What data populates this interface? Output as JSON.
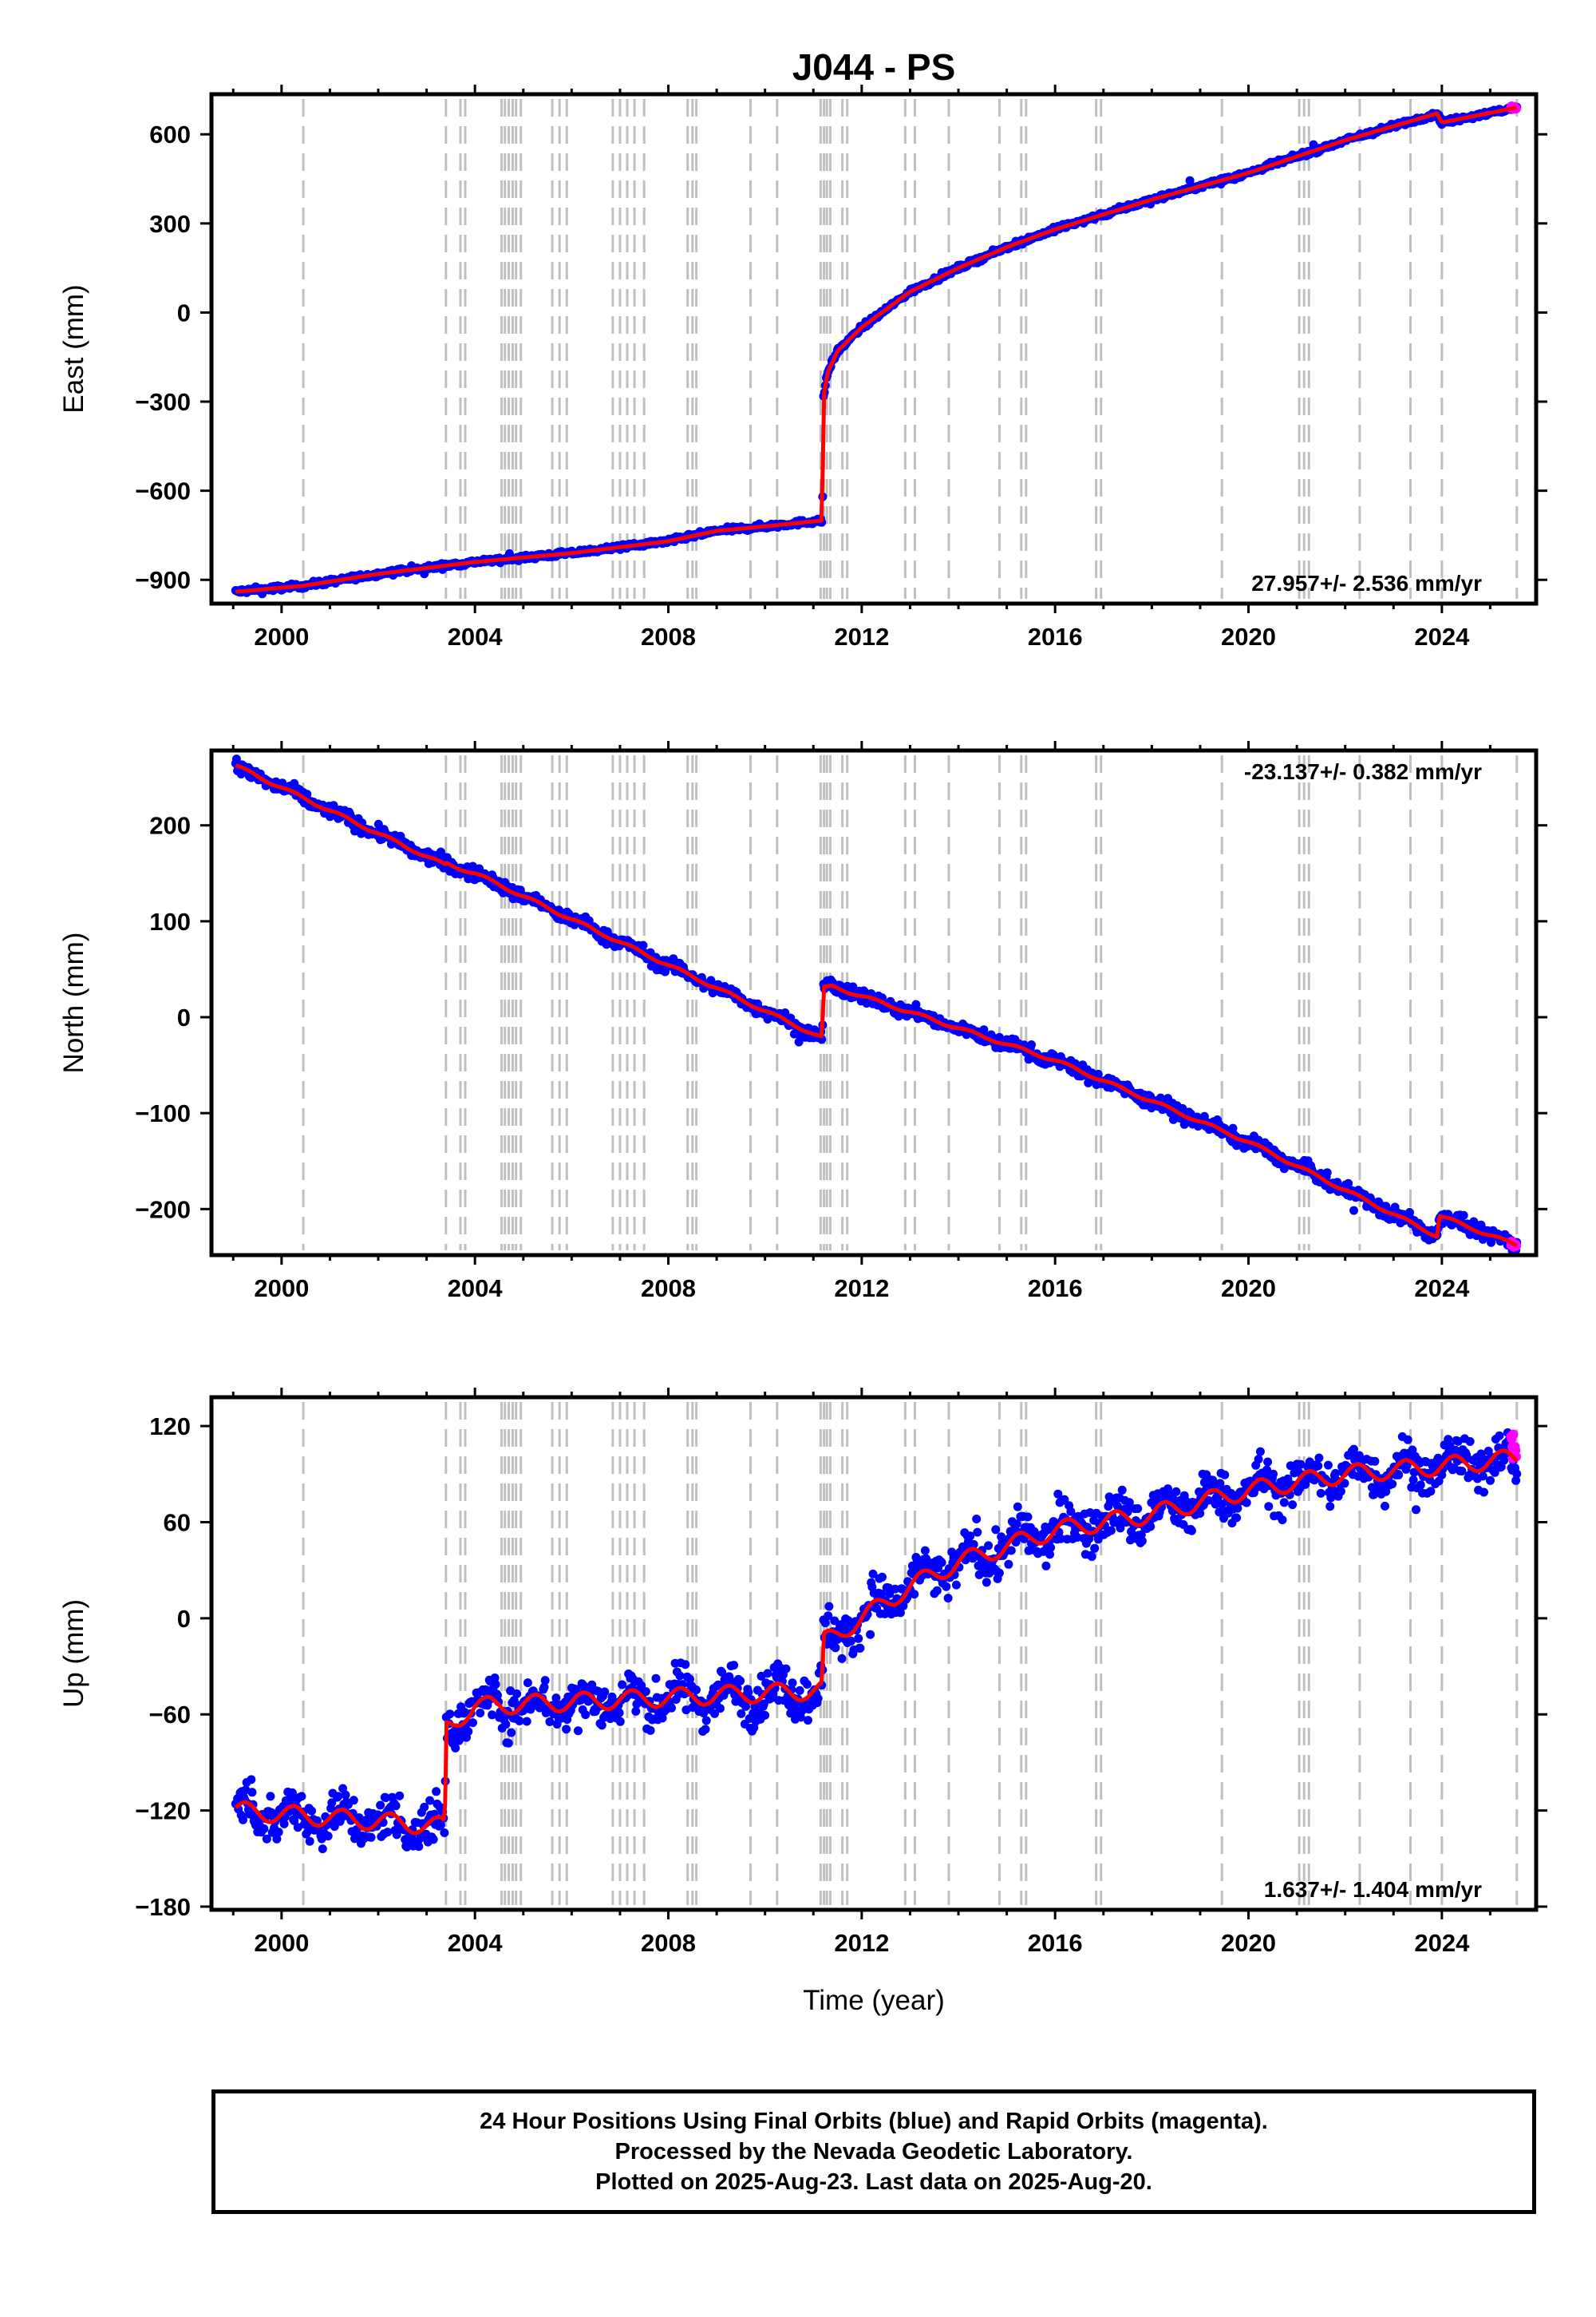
{
  "chart_data": {
    "type": "scatter",
    "title": "J044 - PS",
    "xlabel": "Time (year)",
    "x_ticks": [
      2000,
      2004,
      2008,
      2012,
      2016,
      2020,
      2024
    ],
    "xlim": [
      1998.55,
      2025.95
    ],
    "series_legend": {
      "final_orbits_color": "#0000ff",
      "rapid_orbits_color": "#ff00ff",
      "model_color": "#ff0000",
      "event_line_color": "#c0c0c0"
    },
    "event_lines": [
      2000.45,
      2003.4,
      2003.7,
      2003.8,
      2004.55,
      2004.62,
      2004.7,
      2004.78,
      2004.85,
      2004.95,
      2005.6,
      2005.75,
      2005.9,
      2006.85,
      2007.0,
      2007.15,
      2007.3,
      2007.5,
      2008.4,
      2008.5,
      2008.58,
      2009.7,
      2010.25,
      2011.15,
      2011.22,
      2011.28,
      2011.35,
      2011.6,
      2011.7,
      2012.9,
      2013.1,
      2013.8,
      2014.85,
      2015.3,
      2015.4,
      2016.85,
      2016.95,
      2019.45,
      2021.05,
      2021.15,
      2021.25,
      2022.3,
      2023.35,
      2024.0,
      2025.55
    ],
    "panels": [
      {
        "name": "east",
        "ylabel": "East (mm)",
        "ylim": [
          -980,
          735
        ],
        "yticks": [
          -900,
          -600,
          -300,
          0,
          300,
          600
        ],
        "ytick_labels": [
          "−900",
          "−600",
          "−300",
          "0",
          "300",
          "600"
        ],
        "rate_label": "27.957+/- 2.536 mm/yr",
        "rate_position": "bottom-right",
        "model_x": [
          1999.05,
          2000.45,
          2002,
          2004,
          2006,
          2008,
          2009,
          2010,
          2011.19,
          2011.2,
          2011.3,
          2011.5,
          2012,
          2013,
          2014,
          2015,
          2016,
          2018,
          2020,
          2022,
          2023.9,
          2024.0,
          2025.55
        ],
        "model_y": [
          -940,
          -920,
          -880,
          -840,
          -810,
          -770,
          -735,
          -720,
          -700,
          -290,
          -200,
          -130,
          -50,
          70,
          150,
          220,
          280,
          380,
          470,
          580,
          670,
          640,
          690
        ],
        "noise": 6,
        "seasonal": 0,
        "rapid_y": 690
      },
      {
        "name": "north",
        "ylabel": "North (mm)",
        "ylim": [
          -248,
          278
        ],
        "yticks": [
          -200,
          -100,
          0,
          100,
          200
        ],
        "ytick_labels": [
          "−200",
          "−100",
          "0",
          "100",
          "200"
        ],
        "rate_label": "-23.137+/- 0.382 mm/yr",
        "rate_position": "top-right",
        "model_x": [
          1999.05,
          2003.4,
          2003.41,
          2004.0,
          2011.19,
          2011.2,
          2011.4,
          2012.0,
          2016.0,
          2020.0,
          2023.9,
          2023.95,
          2025.55
        ],
        "model_y": [
          262,
          158,
          160,
          150,
          -22,
          30,
          32,
          22,
          -45,
          -130,
          -228,
          -207,
          -238
        ],
        "noise": 5,
        "seasonal": 2,
        "rapid_y": -237
      },
      {
        "name": "up",
        "ylabel": "Up (mm)",
        "ylim": [
          -182,
          138
        ],
        "yticks": [
          -180,
          -120,
          -60,
          0,
          60,
          120
        ],
        "ytick_labels": [
          "−180",
          "−120",
          "−60",
          "0",
          "60",
          "120"
        ],
        "rate_label": "1.637+/- 1.404 mm/yr",
        "rate_position": "bottom-right",
        "model_x": [
          1999.05,
          2003.38,
          2003.4,
          2004.0,
          2011.19,
          2011.2,
          2012.0,
          2013.0,
          2014.0,
          2016.0,
          2018.0,
          2020.0,
          2022.0,
          2024.0,
          2025.55
        ],
        "model_y": [
          -120,
          -130,
          -68,
          -55,
          -45,
          -15,
          0,
          20,
          35,
          55,
          65,
          80,
          90,
          95,
          100
        ],
        "noise": 10,
        "seasonal": 7,
        "rapid_y": 106
      }
    ],
    "footer": [
      "24 Hour Positions Using Final Orbits (blue) and Rapid Orbits (magenta).",
      "Processed by the Nevada Geodetic Laboratory.",
      "Plotted on 2025-Aug-23. Last data on 2025-Aug-20."
    ]
  }
}
